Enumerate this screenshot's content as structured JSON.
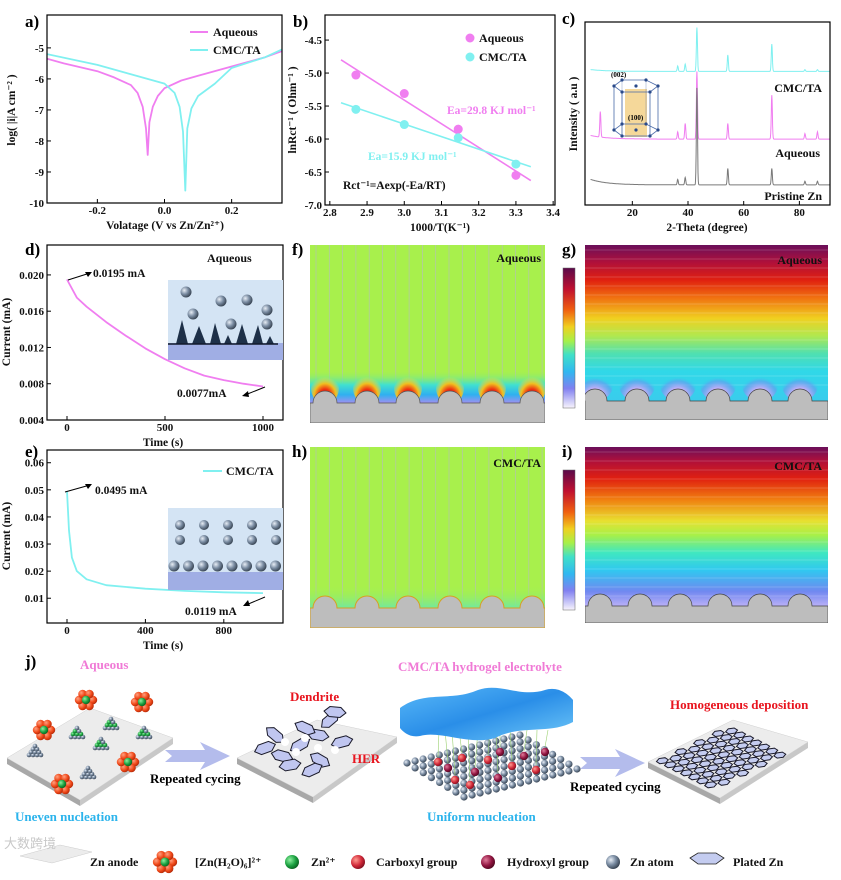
{
  "figure_labels": {
    "a": "a)",
    "b": "b)",
    "c": "c)",
    "d": "d)",
    "e": "e)",
    "f": "f)",
    "g": "g)",
    "h": "h)",
    "i": "i)",
    "j": "j)"
  },
  "colors": {
    "aqueous": "#f07ef0",
    "cmc_ta": "#80f0f0",
    "pristine": "#7a7a7a",
    "red_text": "#e8141e",
    "pink_text": "#f07ad6",
    "blue_text": "#2cb4ec"
  },
  "chart_data": [
    {
      "id": "a",
      "type": "line",
      "xlabel": "Volatage (V vs Zn/Zn²⁺)",
      "ylabel": "log( |i|A cm⁻² )",
      "xlim": [
        -0.35,
        0.35
      ],
      "ylim": [
        -10,
        -3.94
      ],
      "xticks": [
        -0.2,
        0.0,
        0.2
      ],
      "xtick_labels": [
        "-0.2",
        "0.0",
        "0.2"
      ],
      "yticks": [
        -5,
        -6,
        -7,
        -8,
        -9,
        -10
      ],
      "ytick_labels": [
        "-5",
        "-6",
        "-7",
        "-8",
        "-9",
        "-10"
      ],
      "legend": "top-right",
      "series": [
        {
          "name": "Aqueous",
          "color": "#f07ef0",
          "points": [
            [
              -0.35,
              -5.35
            ],
            [
              -0.3,
              -5.5
            ],
            [
              -0.2,
              -5.75
            ],
            [
              -0.15,
              -5.95
            ],
            [
              -0.1,
              -6.2
            ],
            [
              -0.08,
              -6.45
            ],
            [
              -0.065,
              -6.9
            ],
            [
              -0.055,
              -7.6
            ],
            [
              -0.05,
              -8.45
            ],
            [
              -0.045,
              -7.4
            ],
            [
              -0.035,
              -6.9
            ],
            [
              -0.02,
              -6.55
            ],
            [
              0.0,
              -6.3
            ],
            [
              0.05,
              -6.05
            ],
            [
              0.1,
              -5.9
            ],
            [
              0.2,
              -5.6
            ],
            [
              0.3,
              -5.3
            ],
            [
              0.35,
              -5.1
            ]
          ]
        },
        {
          "name": "CMC/TA",
          "color": "#80f0f0",
          "points": [
            [
              -0.35,
              -5.2
            ],
            [
              -0.2,
              -5.55
            ],
            [
              -0.1,
              -5.85
            ],
            [
              0.0,
              -6.15
            ],
            [
              0.03,
              -6.45
            ],
            [
              0.045,
              -6.9
            ],
            [
              0.055,
              -7.7
            ],
            [
              0.062,
              -9.6
            ],
            [
              0.068,
              -7.6
            ],
            [
              0.08,
              -6.95
            ],
            [
              0.1,
              -6.55
            ],
            [
              0.15,
              -6.15
            ],
            [
              0.2,
              -5.65
            ],
            [
              0.3,
              -5.3
            ],
            [
              0.35,
              -5.05
            ]
          ]
        }
      ]
    },
    {
      "id": "b",
      "type": "scatter",
      "xlabel": "1000/T(K⁻¹)",
      "ylabel": "lnRct⁻¹ ( Ohm⁻¹ )",
      "xlim": [
        2.787,
        3.405
      ],
      "ylim": [
        -7.0,
        -4.12
      ],
      "xticks": [
        2.8,
        2.9,
        3.0,
        3.1,
        3.2,
        3.3,
        3.4
      ],
      "xtick_labels": [
        "2.8",
        "2.9",
        "3.0",
        "3.1",
        "3.2",
        "3.3",
        "3.4"
      ],
      "yticks": [
        -4.5,
        -5.0,
        -5.5,
        -6.0,
        -6.5,
        -7.0
      ],
      "ytick_labels": [
        "-4.5",
        "-5.0",
        "-5.5",
        "-6.0",
        "-6.5",
        "-7.0"
      ],
      "legend": "top-right",
      "series": [
        {
          "name": "Aqueous",
          "color": "#f07ef0",
          "points": [
            [
              2.87,
              -5.03
            ],
            [
              3.0,
              -5.31
            ],
            [
              3.145,
              -5.85
            ],
            [
              3.3,
              -6.55
            ]
          ],
          "fit": [
            [
              2.83,
              -4.8
            ],
            [
              3.34,
              -6.63
            ]
          ]
        },
        {
          "name": "CMC/TA",
          "color": "#80f0f0",
          "points": [
            [
              2.87,
              -5.55
            ],
            [
              3.0,
              -5.78
            ],
            [
              3.145,
              -5.98
            ],
            [
              3.3,
              -6.38
            ]
          ],
          "fit": [
            [
              2.83,
              -5.45
            ],
            [
              3.34,
              -6.42
            ]
          ]
        }
      ],
      "annotations": {
        "ea_aqueous": "Ea=29.8 KJ mol⁻¹",
        "ea_cmc": "Ea=15.9 KJ mol⁻¹",
        "equation": "Rct⁻¹=Aexp(-Ea/RT)"
      }
    },
    {
      "id": "c",
      "type": "line",
      "xlabel": "2-Theta (degree)",
      "ylabel": "Intensity ( a.u )",
      "xlim": [
        3,
        91
      ],
      "ylim": [
        0,
        100
      ],
      "xticks": [
        20,
        40,
        60,
        80
      ],
      "xtick_labels": [
        "20",
        "40",
        "60",
        "80"
      ],
      "series": [
        {
          "name": "CMC/TA",
          "color": "#80f0f0",
          "baseline": 73,
          "low_angle_background": 1,
          "peaks": [
            [
              36.3,
              3
            ],
            [
              39,
              4
            ],
            [
              43.2,
              24
            ],
            [
              54.3,
              9
            ],
            [
              70.1,
              15
            ],
            [
              82,
              1
            ],
            [
              86.5,
              1
            ]
          ]
        },
        {
          "name": "Aqueous",
          "color": "#f07ef0",
          "baseline": 36,
          "low_angle_background": 2,
          "peaks": [
            [
              8.5,
              14
            ],
            [
              36.3,
              4
            ],
            [
              39,
              8.6
            ],
            [
              43.2,
              37
            ],
            [
              54.3,
              8.6
            ],
            [
              70.1,
              24
            ],
            [
              82,
              3
            ],
            [
              86.5,
              4
            ]
          ]
        },
        {
          "name": "Pristine Zn",
          "color": "#7a7a7a",
          "baseline": 11,
          "low_angle_background": 3,
          "peaks": [
            [
              36.3,
              3
            ],
            [
              39,
              4
            ],
            [
              43.2,
              53
            ],
            [
              54.3,
              9
            ],
            [
              70.1,
              9
            ],
            [
              82,
              2
            ],
            [
              86.5,
              2
            ]
          ]
        }
      ],
      "inset_labels": {
        "plane_002": "(002)",
        "plane_100": "(100)"
      }
    },
    {
      "id": "d",
      "type": "line",
      "xlabel": "Time (s)",
      "ylabel": "Current (mA)",
      "xlim": [
        -102,
        1102
      ],
      "ylim": [
        0.004,
        0.0233
      ],
      "xticks": [
        0,
        500,
        1000
      ],
      "xtick_labels": [
        "0",
        "500",
        "1000"
      ],
      "yticks": [
        0.004,
        0.008,
        0.012,
        0.016,
        0.02
      ],
      "ytick_labels": [
        "0.004",
        "0.008",
        "0.012",
        "0.016",
        "0.020"
      ],
      "series": [
        {
          "name": "Aqueous",
          "color": "#f07ef0",
          "points": [
            [
              0,
              0.0195
            ],
            [
              50,
              0.0175
            ],
            [
              100,
              0.0165
            ],
            [
              200,
              0.0148
            ],
            [
              300,
              0.0133
            ],
            [
              400,
              0.0119
            ],
            [
              500,
              0.0107
            ],
            [
              600,
              0.0097
            ],
            [
              700,
              0.0089
            ],
            [
              800,
              0.0084
            ],
            [
              900,
              0.008
            ],
            [
              1000,
              0.0077
            ]
          ]
        }
      ],
      "label": "Aqueous",
      "annotations": {
        "start": "0.0195 mA",
        "end": "0.0077mA"
      }
    },
    {
      "id": "e",
      "type": "line",
      "xlabel": "Time (s)",
      "ylabel": "Current (mA)",
      "xlim": [
        -102,
        1102
      ],
      "ylim": [
        0.00086,
        0.0647
      ],
      "xticks": [
        0,
        400,
        800
      ],
      "xtick_labels": [
        "0",
        "400",
        "800"
      ],
      "yticks": [
        0.01,
        0.02,
        0.03,
        0.04,
        0.05,
        0.06
      ],
      "ytick_labels": [
        "0.01",
        "0.02",
        "0.03",
        "0.04",
        "0.05",
        "0.06"
      ],
      "legend": "top-right",
      "series": [
        {
          "name": "CMC/TA",
          "color": "#80f0f0",
          "points": [
            [
              0,
              0.0495
            ],
            [
              10,
              0.035
            ],
            [
              25,
              0.025
            ],
            [
              50,
              0.02
            ],
            [
              100,
              0.017
            ],
            [
              200,
              0.0148
            ],
            [
              400,
              0.0135
            ],
            [
              600,
              0.0127
            ],
            [
              800,
              0.0122
            ],
            [
              1000,
              0.0119
            ]
          ]
        }
      ],
      "annotations": {
        "start": "0.0495 mA",
        "end": "0.0119 mA"
      }
    }
  ],
  "simulations": {
    "f": {
      "label": "Aqueous"
    },
    "g": {
      "label": "Aqueous"
    },
    "h": {
      "label": "CMC/TA"
    },
    "i": {
      "label": "CMC/TA"
    }
  },
  "schematic": {
    "aqueous_title": "Aqueous",
    "hydrogel_title": "CMC/TA hydrogel electrolyte",
    "dendrite": "Dendrite",
    "her": "HER",
    "homogeneous": "Homogeneous deposition",
    "cycling_1": "Repeated cycing",
    "cycling_2": "Repeated cycing",
    "uneven": "Uneven nucleation",
    "uniform": "Uniform nucleation",
    "legend": [
      {
        "label": "Zn anode"
      },
      {
        "label": "[Zn(H₂O)₆]²⁺"
      },
      {
        "label": "Zn²⁺"
      },
      {
        "label": "Carboxyl group"
      },
      {
        "label": "Hydroxyl group"
      },
      {
        "label": "Zn atom"
      },
      {
        "label": "Plated Zn"
      }
    ],
    "watermark": "大数跨境"
  }
}
